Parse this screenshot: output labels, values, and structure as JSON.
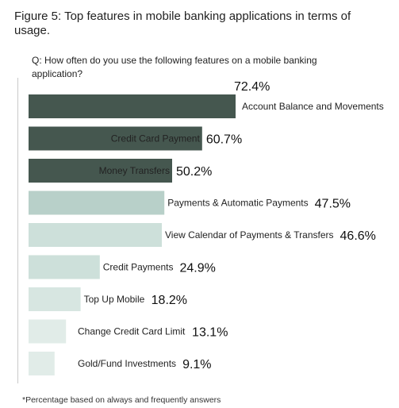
{
  "figure_title": "Figure 5: Top features in mobile banking applications in terms of usage.",
  "question": "Q: How often do you use the following features on a mobile banking application?",
  "footnote": "*Percentage based on always and frequently answers",
  "chart_data": {
    "type": "bar",
    "orientation": "horizontal",
    "title": "Figure 5: Top features in mobile banking applications in terms of usage.",
    "subtitle": "Q: How often do you use the following features on a mobile banking application?",
    "categories": [
      "Account Balance and Movements",
      "Credit Card Payment",
      "Money Transfers",
      "Payments & Automatic Payments",
      "View Calendar of Payments & Transfers",
      "Credit Payments",
      "Top Up Mobile",
      "Change Credit Card Limit",
      "Gold/Fund Investments"
    ],
    "values": [
      72.4,
      60.7,
      50.2,
      47.5,
      46.6,
      24.9,
      18.2,
      13.1,
      9.1
    ],
    "value_labels": [
      "72.4%",
      "60.7%",
      "50.2%",
      "47.5%",
      "46.6%",
      "24.9%",
      "18.2%",
      "13.1%",
      "9.1%"
    ],
    "colors": [
      "#45574f",
      "#45574f",
      "#45574f",
      "#b8d0c9",
      "#cde0da",
      "#cde0da",
      "#d7e6e1",
      "#e1ece8",
      "#e1ece8"
    ],
    "xlim": [
      0,
      72.4
    ],
    "grid": false,
    "legend": "none"
  }
}
